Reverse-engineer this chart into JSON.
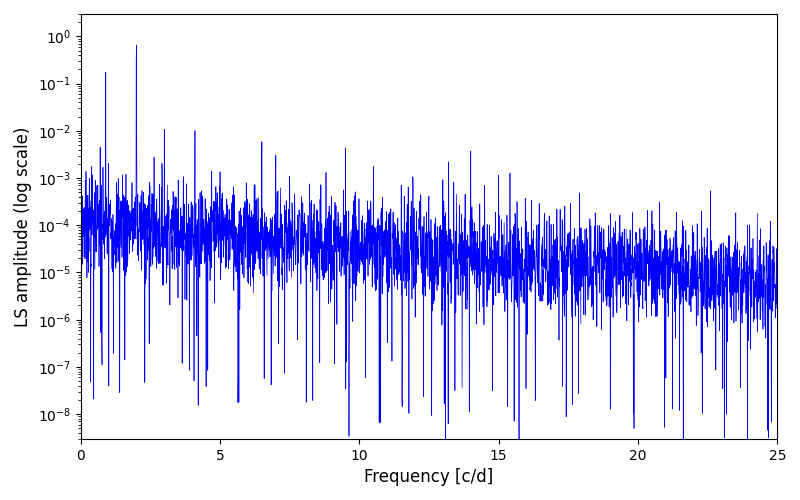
{
  "title": "",
  "xlabel": "Frequency [c/d]",
  "ylabel": "LS amplitude (log scale)",
  "xlim": [
    0,
    25
  ],
  "ylim": [
    3e-09,
    3
  ],
  "line_color": "#0000ff",
  "line_width": 0.5,
  "figsize": [
    8.0,
    5.0
  ],
  "dpi": 100,
  "freq_max": 25.0,
  "n_points": 3000,
  "seed": 7,
  "background_color": "#ffffff"
}
